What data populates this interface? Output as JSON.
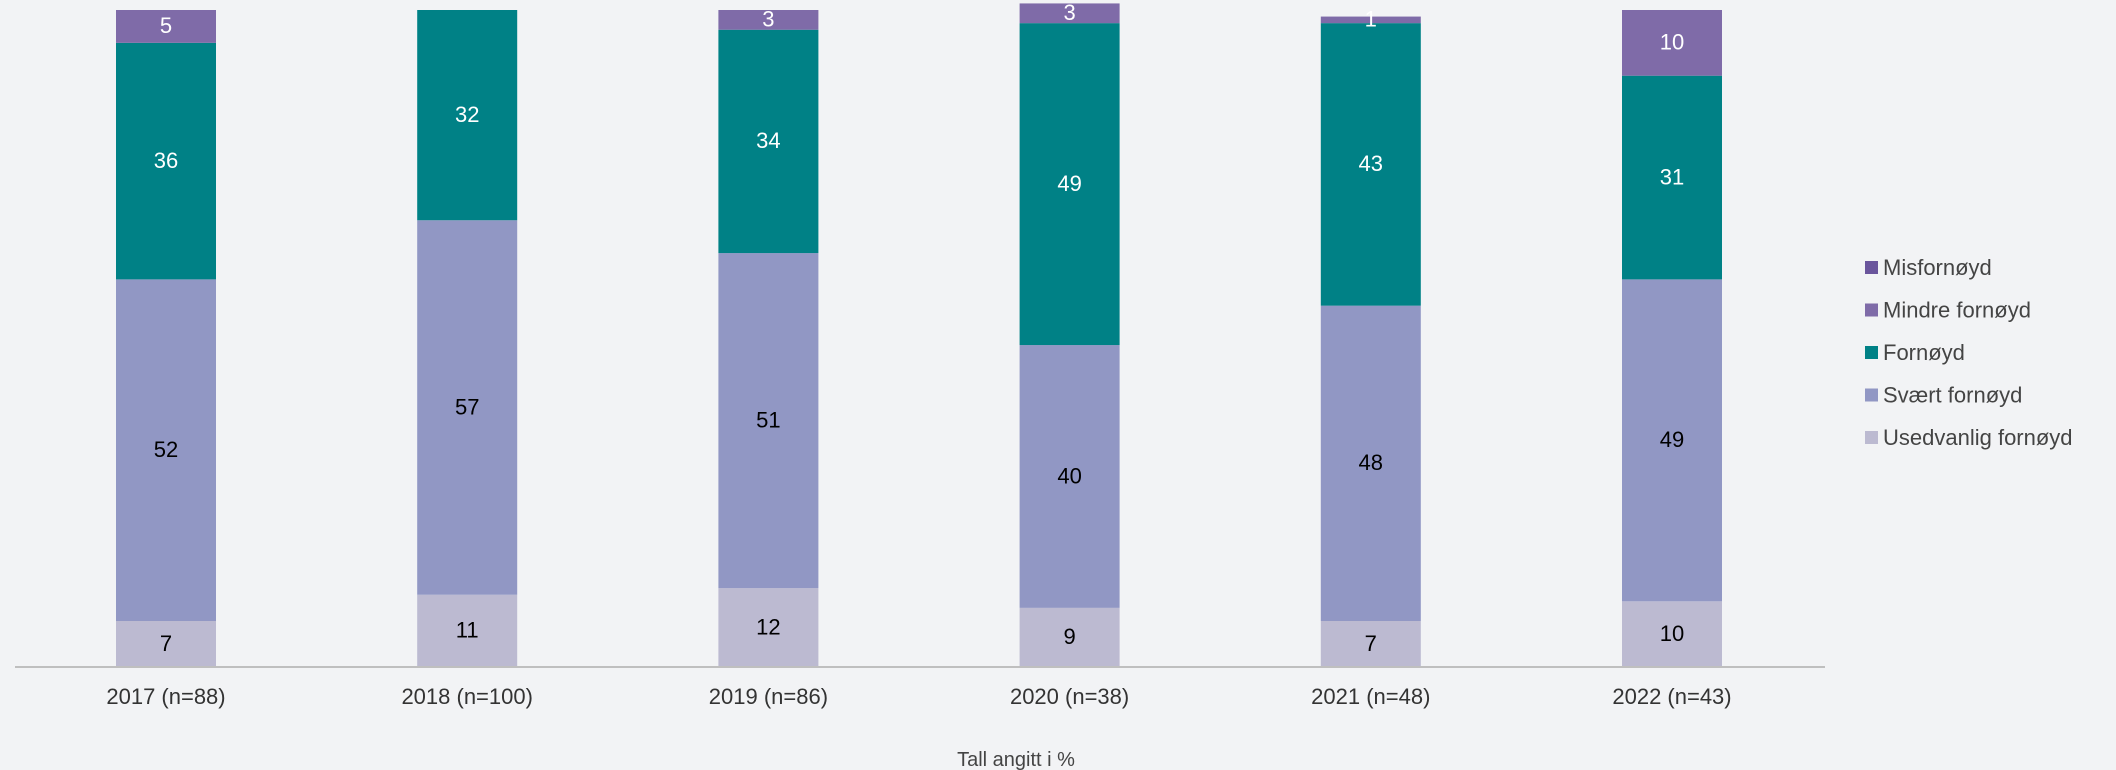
{
  "chart_data": {
    "type": "bar",
    "stacked": true,
    "orientation": "vertical",
    "categories": [
      "2017 (n=88)",
      "2018 (n=100)",
      "2019 (n=86)",
      "2020 (n=38)",
      "2021 (n=48)",
      "2022 (n=43)"
    ],
    "series": [
      {
        "name": "Usedvanlig fornøyd",
        "color": "#bcbad1",
        "label_color": "#000000",
        "values": [
          7,
          11,
          12,
          9,
          7,
          10
        ]
      },
      {
        "name": "Svært fornøyd",
        "color": "#9197c4",
        "label_color": "#000000",
        "values": [
          52,
          57,
          51,
          40,
          48,
          49
        ]
      },
      {
        "name": "Fornøyd",
        "color": "#008186",
        "label_color": "#ffffff",
        "values": [
          36,
          32,
          34,
          49,
          43,
          31
        ]
      },
      {
        "name": "Mindre fornøyd",
        "color": "#7f6ba8",
        "label_color": "#ffffff",
        "values": [
          5,
          0,
          3,
          3,
          1,
          10
        ]
      },
      {
        "name": "Misfornøyd",
        "color": "#6a559c",
        "label_color": "#ffffff",
        "values": [
          0,
          0,
          0,
          0,
          0,
          0
        ]
      }
    ],
    "ylim": [
      0,
      100
    ],
    "grid": false,
    "legend_position": "right",
    "note": "Tall angitt i %"
  }
}
